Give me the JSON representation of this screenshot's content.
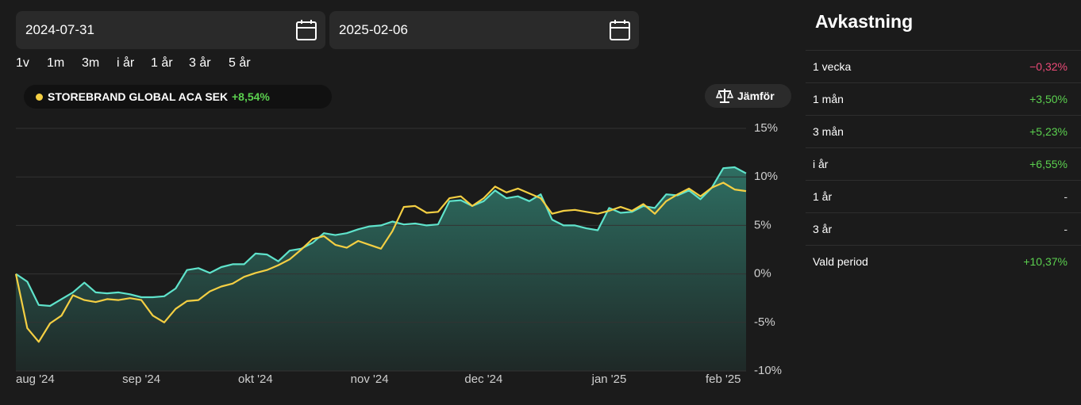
{
  "header": {
    "date_from": "2024-07-31",
    "date_to": "2025-02-06",
    "ranges": [
      "1v",
      "1m",
      "3m",
      "i år",
      "1 år",
      "3 år",
      "5 år"
    ],
    "compare_button": "Jämför"
  },
  "chart_data": {
    "type": "line",
    "categories": [
      "aug '24",
      null,
      null,
      null,
      null,
      null,
      null,
      null,
      null,
      null,
      null,
      "sep '24",
      null,
      null,
      null,
      null,
      null,
      null,
      null,
      null,
      null,
      "okt '24",
      null,
      null,
      null,
      null,
      null,
      null,
      null,
      null,
      null,
      "nov '24",
      null,
      null,
      null,
      null,
      null,
      null,
      null,
      null,
      null,
      "dec '24",
      null,
      null,
      null,
      null,
      null,
      null,
      null,
      null,
      null,
      null,
      "jan '25",
      null,
      null,
      null,
      null,
      null,
      null,
      null,
      null,
      null,
      "feb '25",
      null,
      null
    ],
    "series": [
      {
        "color": "#5fe3cb",
        "area": true,
        "values": [
          0,
          -0.8,
          -3.2,
          -3.3,
          -2.6,
          -1.9,
          -0.9,
          -1.9,
          -2.0,
          -1.9,
          -2.1,
          -2.4,
          -2.4,
          -2.3,
          -1.5,
          0.4,
          0.6,
          0.1,
          0.7,
          1.0,
          1.0,
          2.1,
          2.0,
          1.3,
          2.4,
          2.6,
          3.2,
          4.2,
          4.0,
          4.2,
          4.6,
          4.9,
          5.0,
          5.4,
          5.1,
          5.2,
          5.0,
          5.1,
          7.5,
          7.6,
          7.0,
          7.5,
          8.6,
          7.8,
          8.0,
          7.5,
          8.2,
          5.6,
          5.0,
          5.0,
          4.7,
          4.5,
          6.8,
          6.3,
          6.4,
          7.0,
          6.8,
          8.2,
          8.1,
          8.6,
          7.7,
          8.9,
          10.9,
          11.0,
          10.37
        ]
      },
      {
        "name": "STOREBRAND GLOBAL ACA SEK",
        "change_label": "+8,54%",
        "color": "#f4cf43",
        "area": false,
        "values": [
          0,
          -5.6,
          -7.0,
          -5.1,
          -4.3,
          -2.2,
          -2.7,
          -2.9,
          -2.6,
          -2.7,
          -2.5,
          -2.7,
          -4.3,
          -5.0,
          -3.6,
          -2.8,
          -2.7,
          -1.8,
          -1.3,
          -1.0,
          -0.3,
          0.1,
          0.4,
          0.9,
          1.5,
          2.5,
          3.6,
          3.9,
          3.0,
          2.7,
          3.4,
          3.0,
          2.6,
          4.4,
          6.9,
          7.0,
          6.3,
          6.4,
          7.8,
          8.0,
          7.0,
          7.8,
          9.0,
          8.4,
          8.8,
          8.3,
          7.8,
          6.2,
          6.5,
          6.6,
          6.4,
          6.2,
          6.5,
          6.9,
          6.5,
          7.2,
          6.2,
          7.5,
          8.2,
          8.8,
          8.0,
          8.9,
          9.4,
          8.7,
          8.54
        ]
      }
    ],
    "ylim": [
      -10,
      15
    ],
    "yticks": [
      {
        "value": 15,
        "label": "15%"
      },
      {
        "value": 10,
        "label": "10%"
      },
      {
        "value": 5,
        "label": "5%"
      },
      {
        "value": 0,
        "label": "0%"
      },
      {
        "value": -5,
        "label": "-5%"
      },
      {
        "value": -10,
        "label": "-10%"
      }
    ],
    "grid": true
  },
  "returns": {
    "title": "Avkastning",
    "rows": [
      [
        "1 vecka",
        "−0,32%"
      ],
      [
        "1 mån",
        "+3,50%"
      ],
      [
        "3 mån",
        "+5,23%"
      ],
      [
        "i år",
        "+6,55%"
      ],
      [
        "1 år",
        "-"
      ],
      [
        "3 år",
        "-"
      ],
      [
        "Vald period",
        "+10,37%"
      ]
    ]
  }
}
